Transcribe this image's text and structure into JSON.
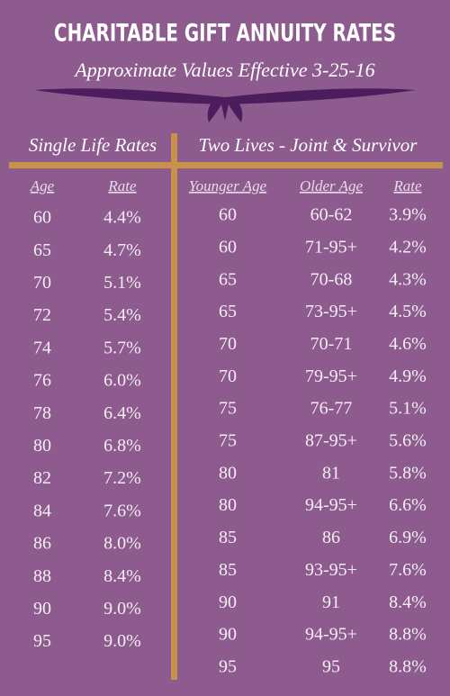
{
  "header": {
    "title": "CHARITABLE GIFT ANNUITY RATES",
    "subtitle": "Approximate Values Effective 3-25-16"
  },
  "single_life": {
    "title": "Single Life Rates",
    "columns": [
      "Age",
      "Rate"
    ],
    "rows": [
      [
        "60",
        "4.4%"
      ],
      [
        "65",
        "4.7%"
      ],
      [
        "70",
        "5.1%"
      ],
      [
        "72",
        "5.4%"
      ],
      [
        "74",
        "5.7%"
      ],
      [
        "76",
        "6.0%"
      ],
      [
        "78",
        "6.4%"
      ],
      [
        "80",
        "6.8%"
      ],
      [
        "82",
        "7.2%"
      ],
      [
        "84",
        "7.6%"
      ],
      [
        "86",
        "8.0%"
      ],
      [
        "88",
        "8.4%"
      ],
      [
        "90",
        "9.0%"
      ],
      [
        "95",
        "9.0%"
      ]
    ]
  },
  "two_lives": {
    "title": "Two Lives - Joint & Survivor",
    "columns": [
      "Younger Age",
      "Older Age",
      "Rate"
    ],
    "rows": [
      [
        "60",
        "60-62",
        "3.9%"
      ],
      [
        "60",
        "71-95+",
        "4.2%"
      ],
      [
        "65",
        "70-68",
        "4.3%"
      ],
      [
        "65",
        "73-95+",
        "4.5%"
      ],
      [
        "70",
        "70-71",
        "4.6%"
      ],
      [
        "70",
        "79-95+",
        "4.9%"
      ],
      [
        "75",
        "76-77",
        "5.1%"
      ],
      [
        "75",
        "87-95+",
        "5.6%"
      ],
      [
        "80",
        "81",
        "5.8%"
      ],
      [
        "80",
        "94-95+",
        "6.6%"
      ],
      [
        "85",
        "86",
        "6.9%"
      ],
      [
        "85",
        "93-95+",
        "7.6%"
      ],
      [
        "90",
        "91",
        "8.4%"
      ],
      [
        "90",
        "94-95+",
        "8.8%"
      ],
      [
        "95",
        "95",
        "8.8%"
      ]
    ]
  }
}
